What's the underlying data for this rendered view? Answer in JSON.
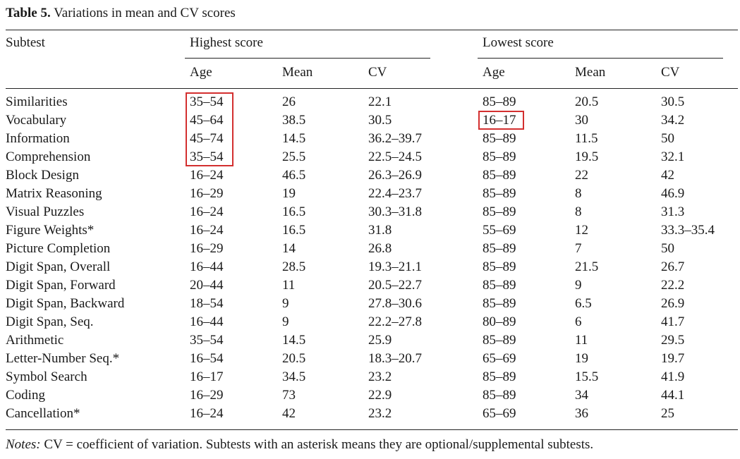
{
  "caption": {
    "label": "Table 5.",
    "title": "Variations in mean and CV scores"
  },
  "header": {
    "subtest": "Subtest",
    "highest": "Highest score",
    "lowest": "Lowest score",
    "age": "Age",
    "mean": "Mean",
    "cv": "CV"
  },
  "rows": [
    {
      "subtest": "Similarities",
      "h_age": "35–54",
      "h_mean": "26",
      "h_cv": "22.1",
      "l_age": "85–89",
      "l_mean": "20.5",
      "l_cv": "30.5"
    },
    {
      "subtest": "Vocabulary",
      "h_age": "45–64",
      "h_mean": "38.5",
      "h_cv": "30.5",
      "l_age": "16–17",
      "l_mean": "30",
      "l_cv": "34.2"
    },
    {
      "subtest": "Information",
      "h_age": "45–74",
      "h_mean": "14.5",
      "h_cv": "36.2–39.7",
      "l_age": "85–89",
      "l_mean": "11.5",
      "l_cv": "50"
    },
    {
      "subtest": "Comprehension",
      "h_age": "35–54",
      "h_mean": "25.5",
      "h_cv": "22.5–24.5",
      "l_age": "85–89",
      "l_mean": "19.5",
      "l_cv": "32.1"
    },
    {
      "subtest": "Block Design",
      "h_age": "16–24",
      "h_mean": "46.5",
      "h_cv": "26.3–26.9",
      "l_age": "85–89",
      "l_mean": "22",
      "l_cv": "42"
    },
    {
      "subtest": "Matrix Reasoning",
      "h_age": "16–29",
      "h_mean": "19",
      "h_cv": "22.4–23.7",
      "l_age": "85–89",
      "l_mean": "8",
      "l_cv": "46.9"
    },
    {
      "subtest": "Visual Puzzles",
      "h_age": "16–24",
      "h_mean": "16.5",
      "h_cv": "30.3–31.8",
      "l_age": "85–89",
      "l_mean": "8",
      "l_cv": "31.3"
    },
    {
      "subtest": "Figure Weights*",
      "h_age": "16–24",
      "h_mean": "16.5",
      "h_cv": "31.8",
      "l_age": "55–69",
      "l_mean": "12",
      "l_cv": "33.3–35.4"
    },
    {
      "subtest": "Picture Completion",
      "h_age": "16–29",
      "h_mean": "14",
      "h_cv": "26.8",
      "l_age": "85–89",
      "l_mean": "7",
      "l_cv": "50"
    },
    {
      "subtest": "Digit Span, Overall",
      "h_age": "16–44",
      "h_mean": "28.5",
      "h_cv": "19.3–21.1",
      "l_age": "85–89",
      "l_mean": "21.5",
      "l_cv": "26.7"
    },
    {
      "subtest": "Digit Span, Forward",
      "h_age": "20–44",
      "h_mean": "11",
      "h_cv": "20.5–22.7",
      "l_age": "85–89",
      "l_mean": "9",
      "l_cv": "22.2"
    },
    {
      "subtest": "Digit Span, Backward",
      "h_age": "18–54",
      "h_mean": "9",
      "h_cv": "27.8–30.6",
      "l_age": "85–89",
      "l_mean": "6.5",
      "l_cv": "26.9"
    },
    {
      "subtest": "Digit Span, Seq.",
      "h_age": "16–44",
      "h_mean": "9",
      "h_cv": "22.2–27.8",
      "l_age": "80–89",
      "l_mean": "6",
      "l_cv": "41.7"
    },
    {
      "subtest": "Arithmetic",
      "h_age": "35–54",
      "h_mean": "14.5",
      "h_cv": "25.9",
      "l_age": "85–89",
      "l_mean": "11",
      "l_cv": "29.5"
    },
    {
      "subtest": "Letter-Number Seq.*",
      "h_age": "16–54",
      "h_mean": "20.5",
      "h_cv": "18.3–20.7",
      "l_age": "65–69",
      "l_mean": "19",
      "l_cv": "19.7"
    },
    {
      "subtest": "Symbol Search",
      "h_age": "16–17",
      "h_mean": "34.5",
      "h_cv": "23.2",
      "l_age": "85–89",
      "l_mean": "15.5",
      "l_cv": "41.9"
    },
    {
      "subtest": "Coding",
      "h_age": "16–29",
      "h_mean": "73",
      "h_cv": "22.9",
      "l_age": "85–89",
      "l_mean": "34",
      "l_cv": "44.1"
    },
    {
      "subtest": "Cancellation*",
      "h_age": "16–24",
      "h_mean": "42",
      "h_cv": "23.2",
      "l_age": "65–69",
      "l_mean": "36",
      "l_cv": "25"
    }
  ],
  "notes": {
    "label": "Notes:",
    "text": "CV = coefficient of variation. Subtests with an asterisk means they are optional/supplemental subtests."
  },
  "highlight_color": "#d32f2f"
}
